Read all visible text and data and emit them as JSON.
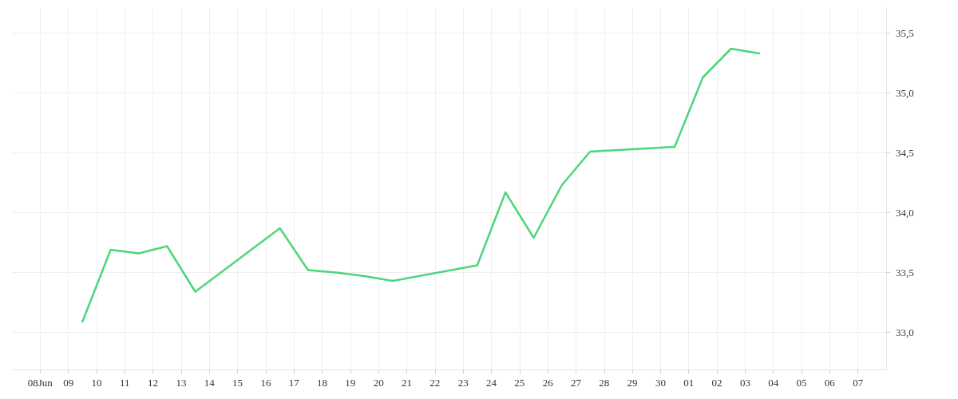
{
  "chart_data": {
    "type": "line",
    "x": [
      "--06-09T12:00",
      "--06-10T12:00",
      "--06-11T12:00",
      "--06-12T12:00",
      "--06-13T12:00",
      "--06-16T12:00",
      "--06-17T12:00",
      "--06-18T12:00",
      "--06-19T12:00",
      "--06-20T12:00",
      "--06-23T12:00",
      "--06-24T12:00",
      "--06-25T12:00",
      "--06-26T12:00",
      "--06-27T12:00",
      "--06-30T12:00",
      "--07-01T12:00",
      "--07-02T12:00",
      "--07-03T12:00"
    ],
    "series": [
      {
        "color": "#4cd67a",
        "values": [
          33.09,
          33.69,
          33.66,
          33.72,
          33.34,
          33.87,
          33.52,
          33.5,
          33.47,
          33.43,
          33.56,
          34.17,
          33.79,
          34.23,
          34.51,
          34.55,
          35.13,
          35.37,
          35.33
        ]
      }
    ],
    "xlim": [
      "--06-07",
      "--07-08"
    ],
    "xticks": [
      {
        "value": "--06-08",
        "label": "08Jun"
      },
      {
        "value": "--06-09",
        "label": "09"
      },
      {
        "value": "--06-10",
        "label": "10"
      },
      {
        "value": "--06-11",
        "label": "11"
      },
      {
        "value": "--06-12",
        "label": "12"
      },
      {
        "value": "--06-13",
        "label": "13"
      },
      {
        "value": "--06-14",
        "label": "14"
      },
      {
        "value": "--06-15",
        "label": "15"
      },
      {
        "value": "--06-16",
        "label": "16"
      },
      {
        "value": "--06-17",
        "label": "17"
      },
      {
        "value": "--06-18",
        "label": "18"
      },
      {
        "value": "--06-19",
        "label": "19"
      },
      {
        "value": "--06-20",
        "label": "20"
      },
      {
        "value": "--06-21",
        "label": "21"
      },
      {
        "value": "--06-22",
        "label": "22"
      },
      {
        "value": "--06-23",
        "label": "23"
      },
      {
        "value": "--06-24",
        "label": "24"
      },
      {
        "value": "--06-25",
        "label": "25"
      },
      {
        "value": "--06-26",
        "label": "26"
      },
      {
        "value": "--06-27",
        "label": "27"
      },
      {
        "value": "--06-28",
        "label": "28"
      },
      {
        "value": "--06-29",
        "label": "29"
      },
      {
        "value": "--06-30",
        "label": "30"
      },
      {
        "value": "--07-01",
        "label": "01"
      },
      {
        "value": "--07-02",
        "label": "02"
      },
      {
        "value": "--07-03",
        "label": "03"
      },
      {
        "value": "--07-04",
        "label": "04"
      },
      {
        "value": "--07-05",
        "label": "05"
      },
      {
        "value": "--07-06",
        "label": "06"
      },
      {
        "value": "--07-07",
        "label": "07"
      }
    ],
    "ylim": [
      32.69,
      35.71
    ],
    "yticks": [
      {
        "value": 33,
        "label": "33,0"
      },
      {
        "value": 33.5,
        "label": "33,5"
      },
      {
        "value": 34,
        "label": "34,0"
      },
      {
        "value": 34.5,
        "label": "34,5"
      },
      {
        "value": 35,
        "label": "35,0"
      },
      {
        "value": 35.5,
        "label": "35,5"
      }
    ],
    "grid": true,
    "marker": "none",
    "line_style": "solid"
  }
}
